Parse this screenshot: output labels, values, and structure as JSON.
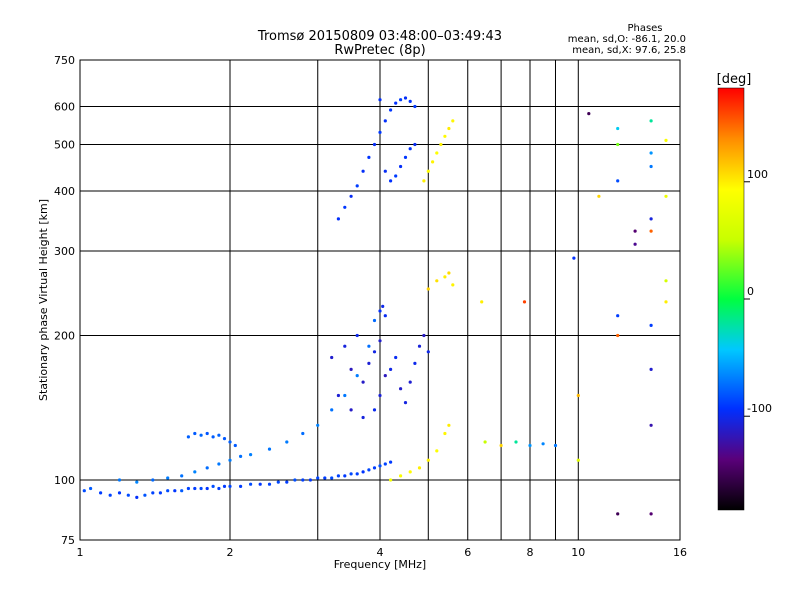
{
  "chart_data": {
    "type": "scatter",
    "title": "Tromsø 20150809 03:48:00–03:49:43",
    "subtitle": "RwPretec (8p)",
    "xlabel": "Frequency [MHz]",
    "ylabel": "Stationary phase Virtual Height [km]",
    "x_scale": "log",
    "y_scale": "log",
    "xlim": [
      1,
      16
    ],
    "ylim": [
      75,
      750
    ],
    "x_ticks": [
      1,
      2,
      4,
      6,
      8,
      10,
      16
    ],
    "x_tick_labels": [
      "1",
      "2",
      "4",
      "6",
      "8",
      "10",
      "16"
    ],
    "x_minor_ticks": [
      3,
      5,
      7,
      9
    ],
    "y_ticks": [
      75,
      100,
      200,
      300,
      400,
      500,
      600,
      750
    ],
    "y_tick_labels": [
      "75",
      "100",
      "200",
      "300",
      "400",
      "500",
      "600",
      "750"
    ],
    "grid": true,
    "phases_box": {
      "title": "Phases",
      "line_o": "mean, sd,O: -86.1, 20.0",
      "line_x": "mean, sd,X:  97.6, 25.8"
    },
    "colorbar": {
      "label": "[deg]",
      "range": [
        -180,
        180
      ],
      "ticks": [
        100,
        0,
        -100
      ],
      "tick_labels": [
        "100",
        "0",
        "-100"
      ]
    },
    "series": [
      {
        "description": "O-mode E/F1 trace",
        "points": [
          [
            1.02,
            95,
            -85
          ],
          [
            1.05,
            96,
            -80
          ],
          [
            1.1,
            94,
            -90
          ],
          [
            1.15,
            93,
            -88
          ],
          [
            1.2,
            94,
            -92
          ],
          [
            1.25,
            93,
            -85
          ],
          [
            1.3,
            92,
            -95
          ],
          [
            1.35,
            93,
            -82
          ],
          [
            1.4,
            94,
            -88
          ],
          [
            1.45,
            94,
            -90
          ],
          [
            1.5,
            95,
            -85
          ],
          [
            1.55,
            95,
            -92
          ],
          [
            1.6,
            95,
            -80
          ],
          [
            1.65,
            96,
            -88
          ],
          [
            1.7,
            96,
            -90
          ],
          [
            1.75,
            96,
            -86
          ],
          [
            1.8,
            96,
            -93
          ],
          [
            1.85,
            97,
            -84
          ],
          [
            1.9,
            96,
            -89
          ],
          [
            1.95,
            97,
            -91
          ],
          [
            2.0,
            97,
            -87
          ],
          [
            2.1,
            97,
            -90
          ],
          [
            2.2,
            98,
            -85
          ],
          [
            2.3,
            98,
            -92
          ],
          [
            2.4,
            98,
            -88
          ],
          [
            2.5,
            99,
            -86
          ],
          [
            2.6,
            99,
            -90
          ],
          [
            2.7,
            100,
            -84
          ],
          [
            2.8,
            100,
            -89
          ],
          [
            2.9,
            100,
            -92
          ],
          [
            3.0,
            101,
            -87
          ],
          [
            3.1,
            101,
            -90
          ],
          [
            3.2,
            101,
            -85
          ],
          [
            3.3,
            102,
            -88
          ],
          [
            3.4,
            102,
            -91
          ],
          [
            3.5,
            103,
            -86
          ],
          [
            3.6,
            103,
            -89
          ],
          [
            3.7,
            104,
            -93
          ],
          [
            3.8,
            105,
            -87
          ],
          [
            3.9,
            106,
            -90
          ],
          [
            4.0,
            107,
            -84
          ],
          [
            4.1,
            108,
            -88
          ],
          [
            4.2,
            109,
            -91
          ]
        ]
      },
      {
        "description": "O-mode upper trace",
        "points": [
          [
            1.2,
            100,
            -70
          ],
          [
            1.3,
            99,
            -65
          ],
          [
            1.4,
            100,
            -75
          ],
          [
            1.5,
            101,
            -68
          ],
          [
            1.6,
            102,
            -72
          ],
          [
            1.7,
            104,
            -66
          ],
          [
            1.8,
            106,
            -74
          ],
          [
            1.9,
            108,
            -70
          ],
          [
            2.0,
            110,
            -68
          ],
          [
            2.1,
            112,
            -73
          ],
          [
            2.2,
            113,
            -67
          ],
          [
            2.4,
            116,
            -71
          ],
          [
            2.6,
            120,
            -69
          ],
          [
            2.8,
            125,
            -74
          ],
          [
            3.0,
            130,
            -66
          ],
          [
            3.2,
            140,
            -72
          ],
          [
            3.4,
            150,
            -70
          ],
          [
            3.6,
            165,
            -68
          ],
          [
            3.8,
            190,
            -73
          ],
          [
            3.9,
            215,
            -75
          ],
          [
            4.0,
            225,
            -95
          ],
          [
            4.05,
            230,
            -100
          ],
          [
            4.1,
            220,
            -98
          ]
        ]
      },
      {
        "description": "O-mode 1.6-2.1 MHz cusp",
        "points": [
          [
            1.65,
            123,
            -78
          ],
          [
            1.7,
            125,
            -80
          ],
          [
            1.75,
            124,
            -76
          ],
          [
            1.8,
            125,
            -82
          ],
          [
            1.85,
            123,
            -79
          ],
          [
            1.9,
            124,
            -77
          ],
          [
            1.95,
            122,
            -81
          ],
          [
            2.0,
            120,
            -78
          ],
          [
            2.05,
            118,
            -80
          ]
        ]
      },
      {
        "description": "O-mode F2 scattered",
        "points": [
          [
            3.2,
            180,
            -110
          ],
          [
            3.4,
            190,
            -105
          ],
          [
            3.5,
            170,
            -115
          ],
          [
            3.6,
            200,
            -100
          ],
          [
            3.7,
            160,
            -112
          ],
          [
            3.8,
            175,
            -108
          ],
          [
            3.9,
            185,
            -103
          ],
          [
            4.0,
            195,
            -110
          ],
          [
            4.0,
            150,
            -107
          ],
          [
            4.1,
            165,
            -115
          ],
          [
            4.2,
            170,
            -102
          ],
          [
            4.3,
            180,
            -98
          ],
          [
            4.4,
            155,
            -111
          ],
          [
            4.5,
            145,
            -104
          ],
          [
            4.6,
            160,
            -109
          ],
          [
            4.7,
            175,
            -100
          ],
          [
            4.8,
            190,
            -106
          ],
          [
            4.9,
            200,
            -113
          ],
          [
            5.0,
            185,
            -101
          ],
          [
            3.3,
            150,
            -108
          ],
          [
            3.5,
            140,
            -112
          ],
          [
            3.7,
            135,
            -105
          ],
          [
            3.9,
            140,
            -99
          ]
        ]
      },
      {
        "description": "O-mode F2 high trace",
        "points": [
          [
            3.3,
            350,
            -95
          ],
          [
            3.4,
            370,
            -92
          ],
          [
            3.5,
            390,
            -98
          ],
          [
            3.6,
            410,
            -90
          ],
          [
            3.7,
            440,
            -96
          ],
          [
            3.8,
            470,
            -93
          ],
          [
            3.9,
            500,
            -97
          ],
          [
            4.0,
            530,
            -91
          ],
          [
            4.1,
            560,
            -95
          ],
          [
            4.2,
            590,
            -92
          ],
          [
            4.3,
            610,
            -94
          ],
          [
            4.4,
            620,
            -90
          ],
          [
            4.5,
            625,
            -96
          ],
          [
            4.6,
            615,
            -93
          ],
          [
            4.7,
            600,
            -91
          ],
          [
            4.0,
            620,
            -95
          ],
          [
            4.1,
            440,
            -97
          ],
          [
            4.2,
            420,
            -94
          ],
          [
            4.3,
            430,
            -90
          ],
          [
            4.4,
            450,
            -96
          ],
          [
            4.5,
            470,
            -92
          ],
          [
            4.6,
            490,
            -94
          ],
          [
            4.7,
            500,
            -98
          ]
        ]
      },
      {
        "description": "X-mode traces",
        "points": [
          [
            4.2,
            100,
            85
          ],
          [
            4.4,
            102,
            90
          ],
          [
            4.6,
            104,
            95
          ],
          [
            4.8,
            106,
            100
          ],
          [
            5.0,
            110,
            98
          ],
          [
            5.2,
            115,
            92
          ],
          [
            5.4,
            125,
            97
          ],
          [
            5.5,
            130,
            101
          ],
          [
            4.9,
            420,
            100
          ],
          [
            5.0,
            440,
            95
          ],
          [
            5.1,
            460,
            98
          ],
          [
            5.2,
            480,
            93
          ],
          [
            5.3,
            500,
            99
          ],
          [
            5.4,
            520,
            96
          ],
          [
            5.5,
            540,
            101
          ],
          [
            5.6,
            560,
            97
          ],
          [
            5.0,
            250,
            110
          ],
          [
            5.2,
            260,
            105
          ],
          [
            5.4,
            265,
            100
          ],
          [
            5.5,
            270,
            108
          ],
          [
            5.6,
            255,
            98
          ]
        ]
      },
      {
        "description": "Scattered high-frequency echoes",
        "points": [
          [
            6.5,
            120,
            50
          ],
          [
            7.0,
            118,
            110
          ],
          [
            7.5,
            120,
            -20
          ],
          [
            8.0,
            118,
            -60
          ],
          [
            8.5,
            119,
            -65
          ],
          [
            9.0,
            118,
            -70
          ],
          [
            6.4,
            235,
            100
          ],
          [
            7.8,
            235,
            160
          ],
          [
            9.8,
            290,
            -95
          ],
          [
            10.5,
            580,
            -150
          ],
          [
            11.0,
            390,
            110
          ],
          [
            12.0,
            540,
            -40
          ],
          [
            12.0,
            500,
            30
          ],
          [
            12.0,
            420,
            -85
          ],
          [
            13.0,
            330,
            -140
          ],
          [
            13.0,
            310,
            -130
          ],
          [
            14.0,
            560,
            -20
          ],
          [
            14.0,
            480,
            -60
          ],
          [
            14.0,
            450,
            -70
          ],
          [
            14.0,
            350,
            -105
          ],
          [
            14.0,
            330,
            150
          ],
          [
            15.0,
            510,
            90
          ],
          [
            15.0,
            390,
            80
          ],
          [
            15.0,
            260,
            60
          ],
          [
            15.0,
            235,
            100
          ],
          [
            10.0,
            150,
            120
          ],
          [
            10.0,
            110,
            70
          ],
          [
            12.0,
            220,
            -90
          ],
          [
            12.0,
            200,
            150
          ],
          [
            14.0,
            210,
            -90
          ],
          [
            14.0,
            170,
            -110
          ],
          [
            14.0,
            130,
            -120
          ],
          [
            12.0,
            85,
            -150
          ],
          [
            14.0,
            85,
            -140
          ]
        ]
      }
    ]
  }
}
